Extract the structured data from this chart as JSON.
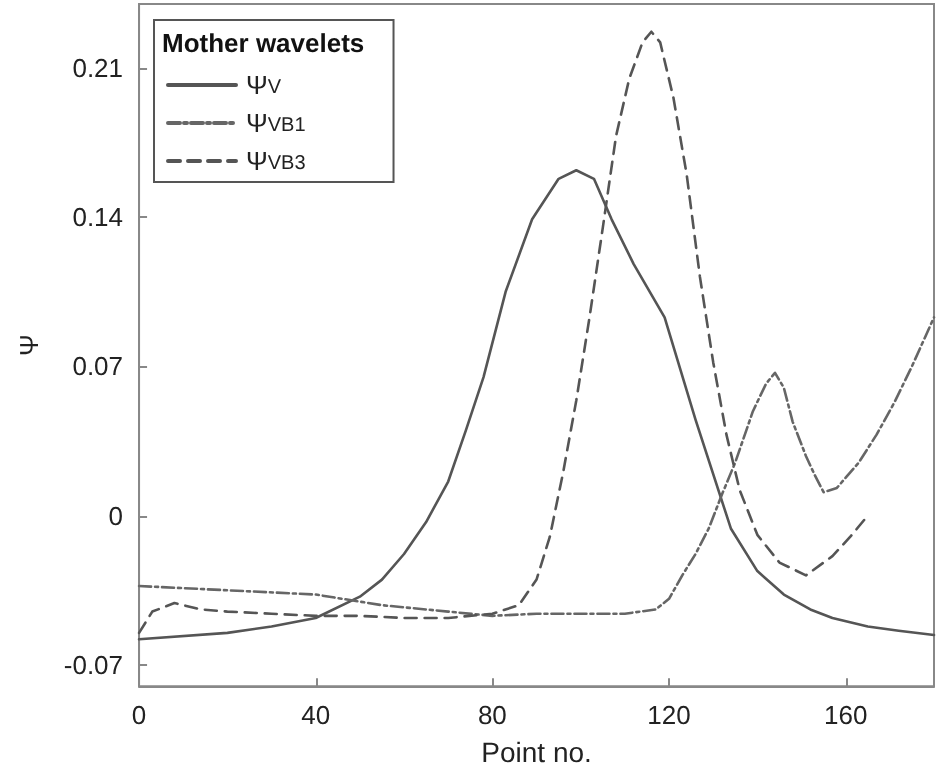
{
  "chart_data": {
    "type": "line",
    "xlabel": "Point no.",
    "ylabel": "Ψ",
    "legend_title": "Mother wavelets",
    "legend": "top left",
    "grid": false,
    "marker": "none",
    "xlim": [
      0,
      180
    ],
    "xticks": [
      0,
      40,
      80,
      120,
      160
    ],
    "ylim": [
      -0.08,
      0.24
    ],
    "yticks": [
      -0.07,
      0,
      0.07,
      0.14,
      0.21
    ],
    "series": [
      {
        "name": "Ψ$_{V}$",
        "color": "#555555",
        "line_style": "solid",
        "x": [
          0,
          20,
          30,
          40,
          50,
          55,
          60,
          65,
          70,
          74,
          78,
          83,
          89,
          95,
          99,
          103,
          107,
          112,
          119,
          126,
          134,
          140,
          146,
          152,
          157,
          165,
          172,
          180
        ],
        "values": [
          -0.058,
          -0.055,
          -0.052,
          -0.048,
          -0.038,
          -0.03,
          -0.018,
          -0.003,
          0.016,
          0.04,
          0.065,
          0.105,
          0.139,
          0.158,
          0.162,
          0.158,
          0.139,
          0.118,
          0.093,
          0.045,
          -0.006,
          -0.026,
          -0.037,
          -0.044,
          -0.048,
          -0.052,
          -0.054,
          -0.056
        ]
      },
      {
        "name": "Ψ$_{VB1}$",
        "color": "#666666",
        "line_style": "dashdot",
        "x": [
          0,
          20,
          40,
          55,
          70,
          80,
          90,
          100,
          110,
          117,
          120,
          123,
          126,
          129,
          132,
          135,
          139,
          142,
          144,
          146,
          148,
          151,
          153,
          155,
          158,
          163,
          167,
          171,
          175,
          180
        ],
        "values": [
          -0.033,
          -0.035,
          -0.037,
          -0.042,
          -0.045,
          -0.047,
          -0.046,
          -0.046,
          -0.046,
          -0.044,
          -0.039,
          -0.028,
          -0.018,
          -0.006,
          0.01,
          0.025,
          0.049,
          0.062,
          0.067,
          0.06,
          0.044,
          0.028,
          0.019,
          0.011,
          0.013,
          0.025,
          0.038,
          0.053,
          0.07,
          0.093
        ]
      },
      {
        "name": "Ψ$_{VB3}$",
        "color": "#555555",
        "line_style": "dashed",
        "x": [
          0,
          3,
          8,
          14,
          20,
          30,
          40,
          50,
          60,
          70,
          80,
          86,
          90,
          93,
          96,
          99,
          102,
          105,
          108,
          111,
          114,
          116,
          118,
          121,
          124,
          127,
          130,
          133,
          136,
          140,
          145,
          151,
          157,
          161,
          165
        ],
        "values": [
          -0.055,
          -0.045,
          -0.041,
          -0.044,
          -0.045,
          -0.046,
          -0.047,
          -0.047,
          -0.048,
          -0.048,
          -0.046,
          -0.042,
          -0.03,
          -0.01,
          0.02,
          0.054,
          0.093,
          0.135,
          0.178,
          0.205,
          0.222,
          0.227,
          0.222,
          0.196,
          0.16,
          0.112,
          0.072,
          0.038,
          0.012,
          -0.009,
          -0.022,
          -0.028,
          -0.019,
          -0.01,
          0
        ]
      }
    ]
  }
}
